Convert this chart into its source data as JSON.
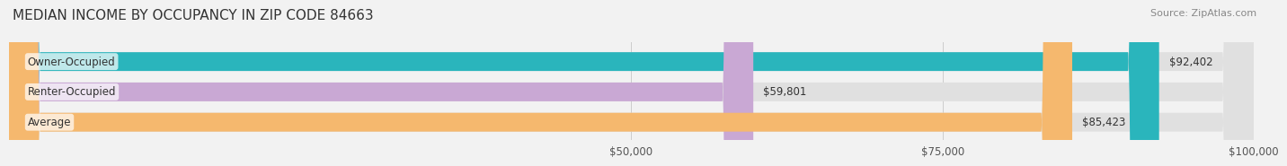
{
  "title": "MEDIAN INCOME BY OCCUPANCY IN ZIP CODE 84663",
  "source": "Source: ZipAtlas.com",
  "categories": [
    "Owner-Occupied",
    "Renter-Occupied",
    "Average"
  ],
  "values": [
    92402,
    59801,
    85423
  ],
  "labels": [
    "$92,402",
    "$59,801",
    "$85,423"
  ],
  "bar_colors": [
    "#2ab5bc",
    "#c9a8d4",
    "#f5b86e"
  ],
  "background_color": "#f2f2f2",
  "bar_bg_color": "#e0e0e0",
  "xlim": [
    0,
    100000
  ],
  "xticks": [
    50000,
    75000,
    100000
  ],
  "xtick_labels": [
    "$50,000",
    "$75,000",
    "$100,000"
  ],
  "title_fontsize": 11,
  "label_fontsize": 8.5,
  "tick_fontsize": 8.5,
  "source_fontsize": 8
}
